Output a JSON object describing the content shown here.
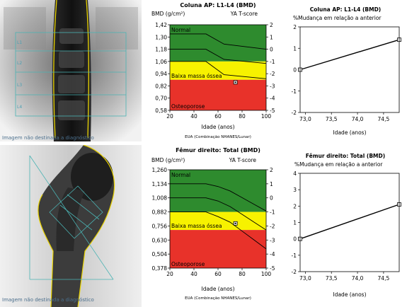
{
  "scans": {
    "spine_caption": "Imagem não destinada a diagnóstico",
    "femur_caption": "Imagem não destinada a diagnóstico",
    "spine_levels": [
      "L1",
      "L2",
      "L3",
      "L4"
    ]
  },
  "colors": {
    "normal": "#2e8b2e",
    "osteopenia": "#f7f200",
    "osteoporosis": "#e8322a"
  },
  "charts": {
    "spine_ref": {
      "title": "Coluna AP: L1-L4 (BMD)",
      "ylabel": "BMD (g/cm²)",
      "y2label": "YA T-score",
      "yticks": [
        "1,42",
        "1,30",
        "1,18",
        "1,06",
        "0,94",
        "0,82",
        "0,70",
        "0,58"
      ],
      "tticks": [
        "2",
        "1",
        "0",
        "-1",
        "-2",
        "-3",
        "-4",
        "-5"
      ],
      "xticks": [
        "20",
        "40",
        "60",
        "80",
        "100"
      ],
      "xlabel": "Idade (anos)",
      "footnote": "EUA (Combinação NHANES/Lunar)",
      "zones": [
        "Normal",
        "Baixa massa óssea",
        "Osteoporose"
      ]
    },
    "femur_ref": {
      "title": "Fêmur direito: Total (BMD)",
      "ylabel": "BMD (g/cm²)",
      "y2label": "YA T-score",
      "yticks": [
        "1,260",
        "1,134",
        "1,008",
        "0,882",
        "0,756",
        "0,630",
        "0,504",
        "0,378"
      ],
      "tticks": [
        "2",
        "1",
        "0",
        "-1",
        "-2",
        "-3",
        "-4",
        "-5"
      ],
      "xticks": [
        "20",
        "40",
        "60",
        "80",
        "100"
      ],
      "xlabel": "Idade (anos)",
      "footnote": "EUA (Combinação NHANES/Lunar)",
      "zones": [
        "Normal",
        "Baixa massa óssea",
        "Osteoporose"
      ]
    },
    "spine_change": {
      "title": "Coluna AP: L1-L4 (BMD)",
      "ylabel": "%Mudança em relação a anterior",
      "yticks": [
        "2",
        "1",
        "0",
        "-1",
        "-2"
      ],
      "xticks": [
        "73,0",
        "73,5",
        "74,0",
        "74,5"
      ],
      "xlabel": "Idade (anos)"
    },
    "femur_change": {
      "title": "Fêmur direito: Total (BMD)",
      "ylabel": "%Mudança em relação a anterior",
      "yticks": [
        "4",
        "3",
        "2",
        "1",
        "0",
        "-1",
        "-2"
      ],
      "xticks": [
        "73,0",
        "73,5",
        "74,0",
        "74,5"
      ],
      "xlabel": "Idade (anos)"
    }
  },
  "chart_data": [
    {
      "type": "line",
      "title": "Coluna AP: L1-L4 (BMD)",
      "xlabel": "Idade (anos)",
      "ylabel": "BMD (g/cm²)",
      "xlim": [
        20,
        100
      ],
      "ylim": [
        0.58,
        1.42
      ],
      "y2lim": [
        -5,
        2
      ],
      "x": [
        20,
        50,
        65,
        100
      ],
      "series": [
        {
          "values": [
            1.33,
            1.33,
            1.23,
            1.18
          ]
        },
        {
          "values": [
            1.18,
            1.18,
            1.08,
            1.04
          ]
        },
        {
          "values": [
            1.06,
            1.06,
            0.93,
            0.89
          ]
        }
      ],
      "points": [
        {
          "x": 74.5,
          "y": 0.855
        }
      ],
      "bands": {
        "normal": [
          1.06,
          1.42
        ],
        "low_bone_mass": [
          0.88,
          1.06
        ],
        "osteoporosis": [
          0.58,
          0.88
        ]
      }
    },
    {
      "type": "line",
      "title": "Fêmur direito: Total (BMD)",
      "xlabel": "Idade (anos)",
      "ylabel": "BMD (g/cm²)",
      "xlim": [
        20,
        100
      ],
      "ylim": [
        0.378,
        1.26
      ],
      "y2lim": [
        -5,
        2
      ],
      "x": [
        20,
        50,
        60,
        70,
        80,
        90,
        100
      ],
      "series": [
        {
          "values": [
            1.134,
            1.134,
            1.11,
            1.07,
            1.01,
            0.95,
            0.89
          ]
        },
        {
          "values": [
            1.008,
            1.008,
            0.98,
            0.93,
            0.86,
            0.79,
            0.72
          ]
        },
        {
          "values": [
            0.882,
            0.882,
            0.84,
            0.79,
            0.71,
            0.63,
            0.55
          ]
        }
      ],
      "points": [
        {
          "x": 74.5,
          "y": 0.779
        }
      ],
      "bands": {
        "normal": [
          0.882,
          1.26
        ],
        "low_bone_mass": [
          0.72,
          0.882
        ],
        "osteoporosis": [
          0.378,
          0.72
        ]
      }
    },
    {
      "type": "line",
      "title": "Coluna AP: L1-L4 (BMD)",
      "xlabel": "Idade (anos)",
      "ylabel": "%Mudança em relação a anterior",
      "xlim": [
        72.9,
        74.8
      ],
      "ylim": [
        -2,
        2
      ],
      "x": [
        72.9,
        74.8
      ],
      "values": [
        0.0,
        1.4
      ]
    },
    {
      "type": "line",
      "title": "Fêmur direito: Total (BMD)",
      "xlabel": "Idade (anos)",
      "ylabel": "%Mudança em relação a anterior",
      "xlim": [
        72.9,
        74.8
      ],
      "ylim": [
        -2,
        4
      ],
      "x": [
        72.9,
        74.8
      ],
      "values": [
        0.0,
        2.1
      ]
    }
  ]
}
